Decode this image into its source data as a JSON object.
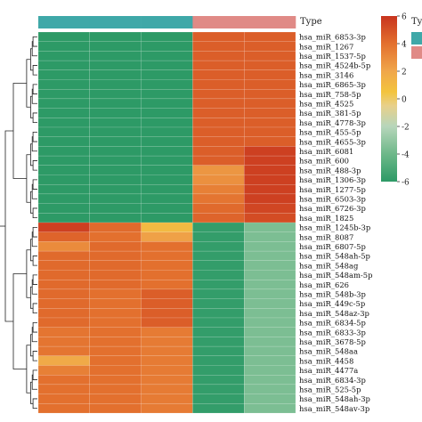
{
  "chart_data": {
    "type": "heatmap",
    "title": "",
    "xlabel": "",
    "ylabel": "",
    "annotation_label": "Type",
    "annotation_legend_partial": "Ty",
    "annotation": [
      "a",
      "a",
      "a",
      "b",
      "b"
    ],
    "annotation_colors": {
      "a": "#3fa8a8",
      "b": "#e08a86"
    },
    "color_scale": {
      "min": -6,
      "max": 6,
      "ticks": [
        6,
        4,
        2,
        0,
        -2,
        -4,
        -6
      ],
      "stops": [
        {
          "v": -6,
          "c": "#2d9a66"
        },
        {
          "v": -4,
          "c": "#6db889"
        },
        {
          "v": -2,
          "c": "#b7d6bb"
        },
        {
          "v": -0.5,
          "c": "#e8d08a"
        },
        {
          "v": 0.5,
          "c": "#f3c43e"
        },
        {
          "v": 2,
          "c": "#f0a64a"
        },
        {
          "v": 4,
          "c": "#e3702e"
        },
        {
          "v": 6,
          "c": "#c8341e"
        }
      ]
    },
    "rows": [
      "hsa_miR_6853-3p",
      "hsa_miR_1267",
      "hsa_miR_1537-5p",
      "hsa_miR_4524b-5p",
      "hsa_miR_3146",
      "hsa_miR_6865-3p",
      "hsa_miR_758-5p",
      "hsa_miR_4525",
      "hsa_miR_381-5p",
      "hsa_miR_4778-3p",
      "hsa_miR_455-5p",
      "hsa_miR_4655-3p",
      "hsa_miR_6081",
      "hsa_miR_600",
      "hsa_miR_488-3p",
      "hsa_miR_1306-3p",
      "hsa_miR_1277-5p",
      "hsa_miR_6503-3p",
      "hsa_miR_6726-3p",
      "hsa_miR_1825",
      "hsa_miR_1245b-3p",
      "hsa_miR_8087",
      "hsa_miR_6807-5p",
      "hsa_miR_548ah-5p",
      "hsa_miR_548ag",
      "hsa_miR_548am-5p",
      "hsa_miR_626",
      "hsa_miR_548b-3p",
      "hsa_miR_449c-5p",
      "hsa_miR_548az-3p",
      "hsa_miR_6834-5p",
      "hsa_miR_6833-3p",
      "hsa_miR_3678-5p",
      "hsa_miR_548aa",
      "hsa_miR_4458",
      "hsa_miR_4477a",
      "hsa_miR_6834-3p",
      "hsa_miR_525-5p",
      "hsa_miR_548ah-3p",
      "hsa_miR_548av-3p"
    ],
    "values": [
      [
        -6,
        -6,
        -6,
        4.6,
        4.6
      ],
      [
        -6,
        -6,
        -6,
        4.6,
        4.6
      ],
      [
        -6,
        -6,
        -6,
        4.6,
        4.6
      ],
      [
        -6,
        -6,
        -6,
        4.6,
        4.6
      ],
      [
        -6,
        -6,
        -6,
        4.6,
        4.6
      ],
      [
        -6,
        -6,
        -6,
        4.6,
        4.6
      ],
      [
        -6,
        -6,
        -6,
        4.6,
        4.6
      ],
      [
        -6,
        -6,
        -6,
        4.6,
        4.6
      ],
      [
        -6,
        -6,
        -6,
        4.6,
        4.6
      ],
      [
        -6,
        -6,
        -6,
        4.6,
        4.6
      ],
      [
        -6,
        -6,
        -6,
        4.6,
        4.6
      ],
      [
        -6,
        -6,
        -6,
        4.6,
        4.6
      ],
      [
        -6,
        -6,
        -6,
        4.6,
        5.6
      ],
      [
        -6,
        -6,
        -6,
        4.6,
        5.6
      ],
      [
        -6,
        -6,
        -6,
        2.6,
        5.6
      ],
      [
        -6,
        -6,
        -6,
        2.8,
        5.6
      ],
      [
        -6,
        -6,
        -6,
        3.4,
        5.6
      ],
      [
        -6,
        -6,
        -6,
        3.8,
        5.6
      ],
      [
        -6,
        -6,
        -6,
        4.2,
        5.4
      ],
      [
        -6,
        -6,
        -6,
        4.4,
        5.2
      ],
      [
        5.6,
        4.2,
        1.0,
        -5.8,
        -3.6
      ],
      [
        4.4,
        4.0,
        2.2,
        -5.8,
        -3.6
      ],
      [
        3.0,
        4.2,
        4.0,
        -5.8,
        -3.6
      ],
      [
        4.2,
        4.2,
        4.0,
        -5.8,
        -3.6
      ],
      [
        4.2,
        4.2,
        4.0,
        -5.8,
        -3.6
      ],
      [
        4.2,
        4.2,
        4.0,
        -5.8,
        -3.6
      ],
      [
        4.2,
        4.2,
        4.0,
        -5.8,
        -3.6
      ],
      [
        4.2,
        4.0,
        4.6,
        -5.8,
        -3.6
      ],
      [
        4.2,
        4.0,
        4.6,
        -5.8,
        -3.6
      ],
      [
        4.2,
        4.0,
        4.6,
        -5.8,
        -3.6
      ],
      [
        4.2,
        4.0,
        4.6,
        -5.8,
        -3.6
      ],
      [
        3.8,
        4.0,
        3.6,
        -5.8,
        -3.6
      ],
      [
        3.8,
        4.0,
        3.6,
        -5.8,
        -3.6
      ],
      [
        3.8,
        4.0,
        3.6,
        -5.8,
        -3.6
      ],
      [
        1.8,
        4.0,
        3.6,
        -5.8,
        -3.6
      ],
      [
        3.4,
        4.0,
        3.6,
        -5.8,
        -3.6
      ],
      [
        4.0,
        4.0,
        3.6,
        -5.8,
        -3.6
      ],
      [
        4.0,
        4.0,
        3.6,
        -5.8,
        -3.6
      ],
      [
        4.0,
        4.0,
        3.6,
        -5.8,
        -3.6
      ],
      [
        4.0,
        4.0,
        3.6,
        -5.8,
        -3.6
      ]
    ]
  }
}
